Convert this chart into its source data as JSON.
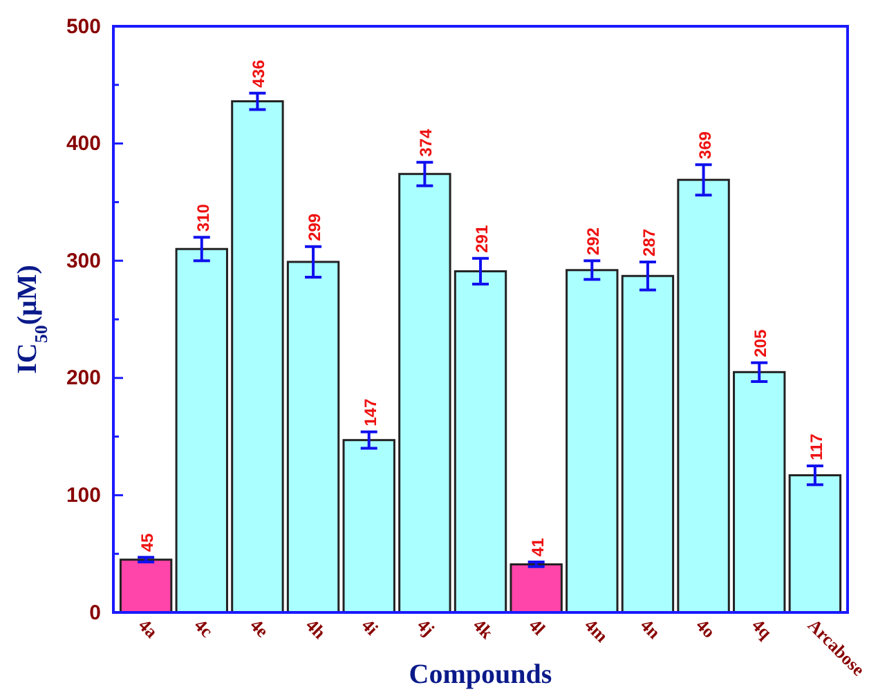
{
  "chart_data": {
    "type": "bar",
    "xlabel": "Compounds",
    "ylabel": "IC$_{50}$(μM)",
    "categories": [
      "4a",
      "4c",
      "4e",
      "4h",
      "4i",
      "4j",
      "4k",
      "4l",
      "4m",
      "4n",
      "4o",
      "4q",
      "Arcabose"
    ],
    "values": [
      45,
      310,
      436,
      299,
      147,
      374,
      291,
      41,
      292,
      287,
      369,
      205,
      117
    ],
    "errors": [
      2,
      10,
      7,
      13,
      7,
      10,
      11,
      2,
      8,
      12,
      13,
      8,
      8
    ],
    "colors": [
      "#ff44aa",
      "#aaffff",
      "#aaffff",
      "#aaffff",
      "#aaffff",
      "#aaffff",
      "#aaffff",
      "#ff44aa",
      "#aaffff",
      "#aaffff",
      "#aaffff",
      "#aaffff",
      "#aaffff"
    ],
    "ylim": [
      0,
      500
    ],
    "yticks": [
      0,
      100,
      200,
      300,
      400,
      500
    ],
    "data_labels": true,
    "grid": false
  }
}
